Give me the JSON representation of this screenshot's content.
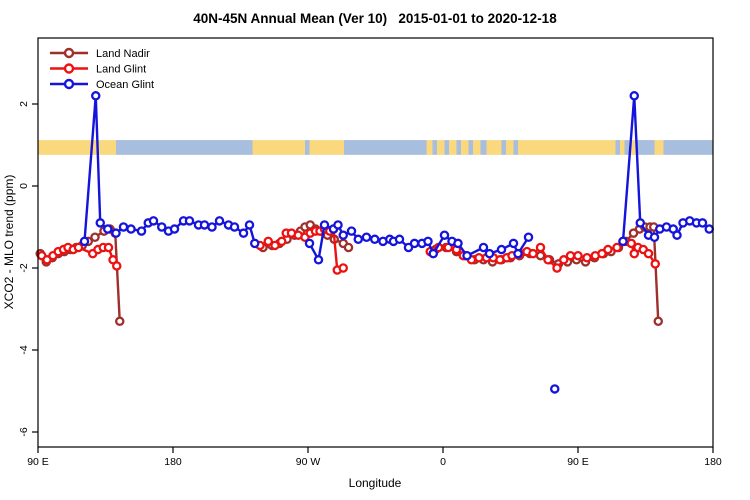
{
  "title": "40N-45N Annual Mean (Ver 10)   2015-01-01 to 2020-12-18",
  "chart_data": {
    "type": "line",
    "title": "40N-45N Annual Mean (Ver 10)   2015-01-01 to 2020-12-18",
    "xlabel": "Longitude",
    "ylabel": "XCO2 - MLO trend (ppm)",
    "x_axis": {
      "note": "wrapped longitude axis, degrees measured eastward from 90E at left edge to 180 at right edge (450 deg span)",
      "range": [
        90,
        540
      ],
      "ticks": [
        {
          "pos": 90,
          "label": "90 E"
        },
        {
          "pos": 180,
          "label": "180"
        },
        {
          "pos": 270,
          "label": "90 W"
        },
        {
          "pos": 360,
          "label": "0"
        },
        {
          "pos": 450,
          "label": "90 E"
        },
        {
          "pos": 540,
          "label": "180"
        }
      ]
    },
    "y_axis": {
      "range": [
        -6.4,
        3.6
      ],
      "ticks": [
        2,
        0,
        -2,
        -4,
        -6
      ],
      "grid": false
    },
    "legend_position": "top-left",
    "gap_break_deg": 12,
    "map_strip": {
      "y_range": [
        0.76,
        1.12
      ],
      "land_color": "#FAD87E",
      "ocean_color": "#A8BEDE",
      "segments": [
        {
          "from": 90,
          "to": 142,
          "type": "land"
        },
        {
          "from": 142,
          "to": 233,
          "type": "ocean"
        },
        {
          "from": 233,
          "to": 268,
          "type": "land"
        },
        {
          "from": 268,
          "to": 271,
          "type": "ocean"
        },
        {
          "from": 271,
          "to": 294,
          "type": "land"
        },
        {
          "from": 294,
          "to": 349,
          "type": "ocean"
        },
        {
          "from": 349,
          "to": 353,
          "type": "land"
        },
        {
          "from": 353,
          "to": 356,
          "type": "ocean"
        },
        {
          "from": 356,
          "to": 361,
          "type": "land"
        },
        {
          "from": 361,
          "to": 364,
          "type": "ocean"
        },
        {
          "from": 364,
          "to": 369,
          "type": "land"
        },
        {
          "from": 369,
          "to": 372,
          "type": "ocean"
        },
        {
          "from": 372,
          "to": 377,
          "type": "land"
        },
        {
          "from": 377,
          "to": 380,
          "type": "ocean"
        },
        {
          "from": 380,
          "to": 385,
          "type": "land"
        },
        {
          "from": 385,
          "to": 389,
          "type": "ocean"
        },
        {
          "from": 389,
          "to": 399,
          "type": "land"
        },
        {
          "from": 399,
          "to": 402,
          "type": "ocean"
        },
        {
          "from": 402,
          "to": 407,
          "type": "land"
        },
        {
          "from": 407,
          "to": 410,
          "type": "ocean"
        },
        {
          "from": 410,
          "to": 475,
          "type": "land"
        },
        {
          "from": 475,
          "to": 478,
          "type": "ocean"
        },
        {
          "from": 478,
          "to": 481,
          "type": "land"
        },
        {
          "from": 481,
          "to": 484,
          "type": "ocean"
        },
        {
          "from": 484,
          "to": 489,
          "type": "land"
        },
        {
          "from": 489,
          "to": 501,
          "type": "ocean"
        },
        {
          "from": 501,
          "to": 507,
          "type": "land"
        },
        {
          "from": 507,
          "to": 540,
          "type": "ocean"
        }
      ]
    },
    "series": [
      {
        "name": "Land Nadir",
        "color": "#9E2F2B",
        "points": [
          [
            91.5,
            -1.65
          ],
          [
            95.5,
            -1.85
          ],
          [
            99.5,
            -1.75
          ],
          [
            103.5,
            -1.65
          ],
          [
            107.5,
            -1.6
          ],
          [
            111.5,
            -1.55
          ],
          [
            115.5,
            -1.5
          ],
          [
            119.5,
            -1.45
          ],
          [
            123.5,
            -1.35
          ],
          [
            128,
            -1.25
          ],
          [
            134,
            -1.1
          ],
          [
            138,
            -1.05
          ],
          [
            141.5,
            -1.15
          ],
          [
            144.5,
            -3.3
          ],
          [
            240,
            -1.5
          ],
          [
            246,
            -1.45
          ],
          [
            251,
            -1.4
          ],
          [
            256,
            -1.3
          ],
          [
            261,
            -1.2
          ],
          [
            265,
            -1.1
          ],
          [
            268,
            -1.0
          ],
          [
            271.5,
            -0.95
          ],
          [
            275,
            -1.05
          ],
          [
            279,
            -1.1
          ],
          [
            283,
            -1.2
          ],
          [
            287.5,
            -1.3
          ],
          [
            293.5,
            -1.4
          ],
          [
            297,
            -1.5
          ],
          [
            355,
            -1.55
          ],
          [
            362,
            -1.5
          ],
          [
            369,
            -1.6
          ],
          [
            375,
            -1.7
          ],
          [
            381,
            -1.8
          ],
          [
            387,
            -1.8
          ],
          [
            393,
            -1.85
          ],
          [
            399,
            -1.8
          ],
          [
            405,
            -1.75
          ],
          [
            411,
            -1.7
          ],
          [
            418,
            -1.65
          ],
          [
            425,
            -1.7
          ],
          [
            431,
            -1.8
          ],
          [
            437,
            -1.9
          ],
          [
            443,
            -1.85
          ],
          [
            449,
            -1.8
          ],
          [
            455,
            -1.85
          ],
          [
            461,
            -1.75
          ],
          [
            467,
            -1.65
          ],
          [
            472,
            -1.6
          ],
          [
            477,
            -1.5
          ],
          [
            482,
            -1.35
          ],
          [
            487,
            -1.15
          ],
          [
            491,
            -1.05
          ],
          [
            494.5,
            -1.0
          ],
          [
            498,
            -1.0
          ],
          [
            500.5,
            -1.0
          ],
          [
            503.5,
            -3.3
          ]
        ]
      },
      {
        "name": "Land Glint",
        "color": "#ED1111",
        "points": [
          [
            92.5,
            -1.7
          ],
          [
            96,
            -1.8
          ],
          [
            100,
            -1.7
          ],
          [
            103.5,
            -1.6
          ],
          [
            107,
            -1.55
          ],
          [
            110,
            -1.5
          ],
          [
            113.5,
            -1.55
          ],
          [
            117,
            -1.5
          ],
          [
            126.5,
            -1.65
          ],
          [
            130,
            -1.55
          ],
          [
            133.5,
            -1.5
          ],
          [
            137,
            -1.5
          ],
          [
            140,
            -1.8
          ],
          [
            142.5,
            -1.95
          ],
          [
            238,
            -1.45
          ],
          [
            243.5,
            -1.35
          ],
          [
            248,
            -1.45
          ],
          [
            252.5,
            -1.35
          ],
          [
            255.5,
            -1.15
          ],
          [
            259,
            -1.15
          ],
          [
            263.5,
            -1.2
          ],
          [
            268,
            -1.25
          ],
          [
            271.5,
            -1.15
          ],
          [
            275,
            -1.1
          ],
          [
            278,
            -1.1
          ],
          [
            281,
            -1.05
          ],
          [
            284.5,
            -1.1
          ],
          [
            287,
            -1.05
          ],
          [
            289.5,
            -2.05
          ],
          [
            293.5,
            -2.0
          ],
          [
            351.5,
            -1.6
          ],
          [
            357,
            -1.5
          ],
          [
            363.5,
            -1.5
          ],
          [
            369,
            -1.55
          ],
          [
            373.5,
            -1.7
          ],
          [
            379,
            -1.8
          ],
          [
            384,
            -1.75
          ],
          [
            389,
            -1.75
          ],
          [
            393.5,
            -1.75
          ],
          [
            398,
            -1.8
          ],
          [
            402.5,
            -1.75
          ],
          [
            406,
            -1.7
          ],
          [
            411.5,
            -1.65
          ],
          [
            416,
            -1.6
          ],
          [
            420,
            -1.65
          ],
          [
            425,
            -1.5
          ],
          [
            430,
            -1.8
          ],
          [
            436,
            -2.0
          ],
          [
            440.5,
            -1.8
          ],
          [
            445,
            -1.7
          ],
          [
            450,
            -1.7
          ],
          [
            456,
            -1.75
          ],
          [
            461.5,
            -1.7
          ],
          [
            466,
            -1.65
          ],
          [
            470,
            -1.55
          ],
          [
            476,
            -1.5
          ],
          [
            480,
            -1.35
          ],
          [
            485.5,
            -1.4
          ],
          [
            487.5,
            -1.65
          ],
          [
            490,
            -1.5
          ],
          [
            493.5,
            -1.55
          ],
          [
            497,
            -1.65
          ],
          [
            501.5,
            -1.9
          ]
        ]
      },
      {
        "name": "Ocean Glint",
        "color": "#1414DC",
        "points": [
          [
            121,
            -1.35
          ],
          [
            128.5,
            2.2
          ],
          [
            131.5,
            -0.9
          ],
          [
            136.5,
            -1.05
          ],
          [
            142,
            -1.15
          ],
          [
            147,
            -1.0
          ],
          [
            152,
            -1.05
          ],
          [
            159,
            -1.1
          ],
          [
            163.5,
            -0.9
          ],
          [
            167,
            -0.85
          ],
          [
            172.5,
            -1.0
          ],
          [
            177,
            -1.1
          ],
          [
            181,
            -1.05
          ],
          [
            187,
            -0.85
          ],
          [
            191,
            -0.85
          ],
          [
            197,
            -0.95
          ],
          [
            201,
            -0.95
          ],
          [
            206,
            -1.0
          ],
          [
            211,
            -0.85
          ],
          [
            217,
            -0.95
          ],
          [
            221,
            -1.0
          ],
          [
            227,
            -1.15
          ],
          [
            231,
            -0.95
          ],
          [
            234.5,
            -1.4
          ],
          [
            271,
            -1.4
          ],
          [
            277,
            -1.8
          ],
          [
            281,
            -0.95
          ],
          [
            287,
            -1.05
          ],
          [
            290,
            -0.95
          ],
          [
            293.5,
            -1.2
          ],
          [
            299,
            -1.1
          ],
          [
            303.5,
            -1.3
          ],
          [
            309,
            -1.25
          ],
          [
            314.5,
            -1.3
          ],
          [
            320,
            -1.35
          ],
          [
            324.5,
            -1.3
          ],
          [
            327,
            -1.35
          ],
          [
            331,
            -1.3
          ],
          [
            337,
            -1.5
          ],
          [
            341,
            -1.4
          ],
          [
            346,
            -1.4
          ],
          [
            350,
            -1.35
          ],
          [
            353.5,
            -1.65
          ],
          [
            361,
            -1.2
          ],
          [
            366,
            -1.35
          ],
          [
            370,
            -1.4
          ],
          [
            376,
            -1.7
          ],
          [
            387,
            -1.5
          ],
          [
            391,
            -1.65
          ],
          [
            399,
            -1.55
          ],
          [
            407,
            -1.4
          ],
          [
            410,
            -1.65
          ],
          [
            417,
            -1.25
          ],
          [
            434.5,
            -4.95
          ],
          [
            480,
            -1.35
          ],
          [
            487.5,
            2.2
          ],
          [
            491.5,
            -0.9
          ],
          [
            497,
            -1.2
          ],
          [
            501,
            -1.25
          ],
          [
            504.5,
            -1.05
          ],
          [
            509,
            -1.0
          ],
          [
            513.5,
            -1.05
          ],
          [
            516,
            -1.2
          ],
          [
            520,
            -0.9
          ],
          [
            524.5,
            -0.85
          ],
          [
            529,
            -0.9
          ],
          [
            533,
            -0.9
          ],
          [
            537.5,
            -1.05
          ]
        ]
      }
    ]
  },
  "legend": {
    "items": [
      {
        "label": "Land Nadir",
        "color": "#9E2F2B"
      },
      {
        "label": "Land Glint",
        "color": "#ED1111"
      },
      {
        "label": "Ocean Glint",
        "color": "#1414DC"
      }
    ]
  }
}
